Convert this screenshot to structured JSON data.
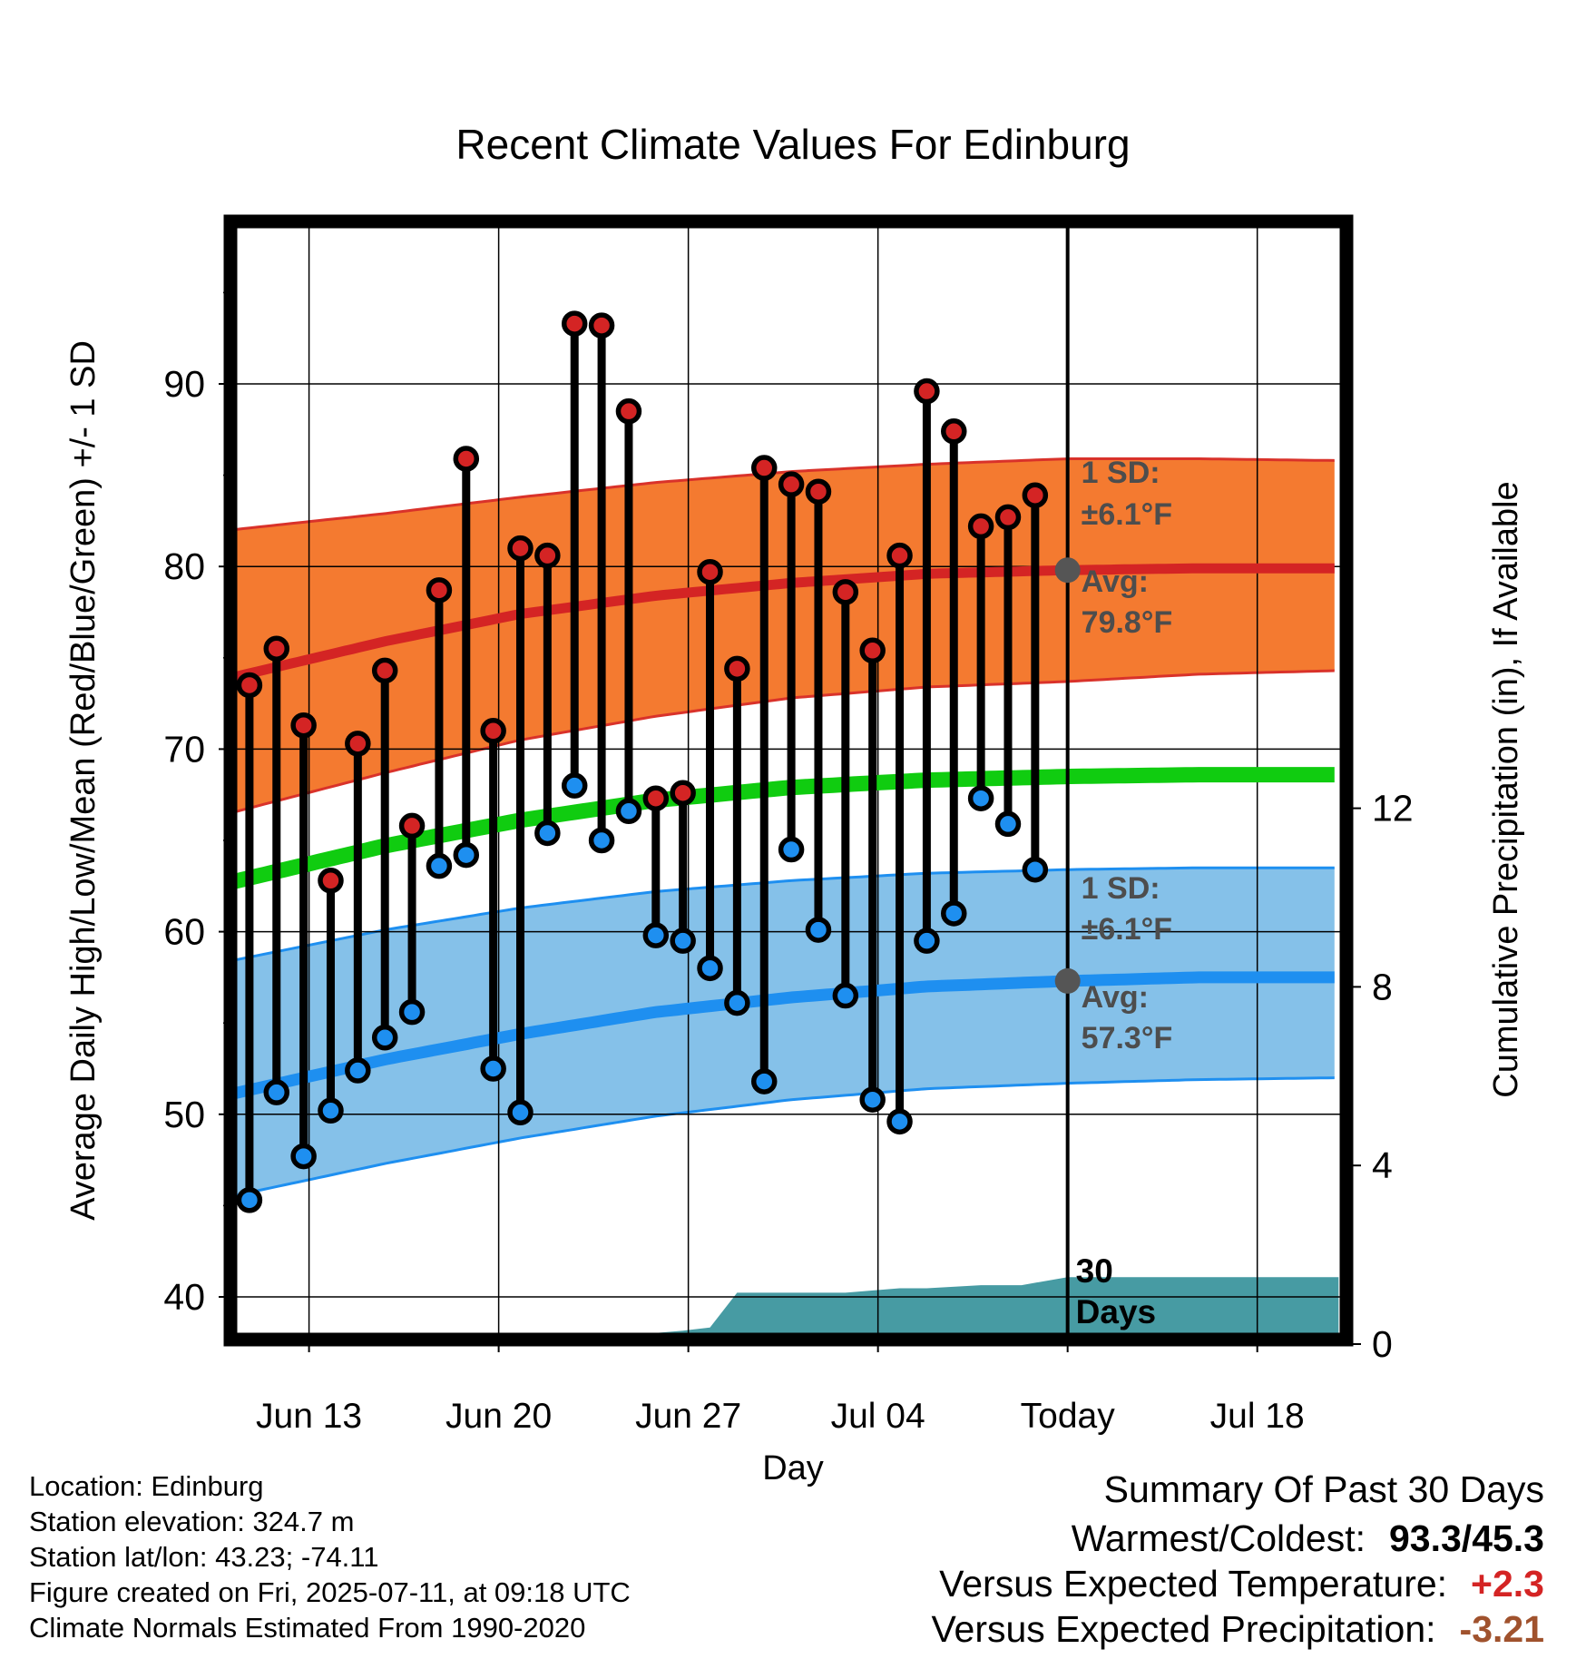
{
  "chart_data": {
    "type": "line",
    "title": "Recent Climate Values For Edinburg",
    "xlabel": "Day",
    "ylabel_left": "Average Daily High/Low/Mean (Red/Blue/Green) +/- 1 SD",
    "ylabel_right": "Cumulative Precipitation (in), If Available",
    "ylim_left": [
      37.8,
      98.5
    ],
    "ylim_right": [
      0,
      17.9
    ],
    "yticks_left": [
      40,
      50,
      60,
      70,
      80,
      90
    ],
    "yticks_right": [
      0,
      4,
      8,
      12
    ],
    "x_ticks": [
      {
        "day": 2.2,
        "label": "Jun 13"
      },
      {
        "day": 9.2,
        "label": "Jun 20"
      },
      {
        "day": 16.2,
        "label": "Jun 27"
      },
      {
        "day": 23.2,
        "label": "Jul 04"
      },
      {
        "day": 30.2,
        "label": "Today"
      },
      {
        "day": 37.2,
        "label": "Jul 18"
      }
    ],
    "xlim": [
      -0.7,
      40.2
    ],
    "today_day": 30.2,
    "highs": [
      73.5,
      75.5,
      71.3,
      62.8,
      70.3,
      74.3,
      65.8,
      78.7,
      85.9,
      71.0,
      81.0,
      80.6,
      93.3,
      93.2,
      88.5,
      67.3,
      67.6,
      79.7,
      74.4,
      85.4,
      84.5,
      84.1,
      78.6,
      75.4,
      80.6,
      89.6,
      87.4,
      82.2,
      82.7,
      83.9
    ],
    "lows": [
      45.3,
      51.2,
      47.7,
      50.2,
      52.4,
      54.2,
      55.6,
      63.6,
      64.2,
      52.5,
      50.1,
      65.4,
      68.0,
      65.0,
      66.6,
      59.8,
      59.5,
      58.0,
      56.1,
      51.8,
      64.5,
      60.1,
      56.5,
      50.8,
      49.6,
      59.5,
      61.0,
      67.3,
      65.9,
      63.4
    ],
    "normals": {
      "days": [
        -0.7,
        5,
        10,
        15,
        20,
        25,
        30.2,
        35,
        40.2
      ],
      "high_mean": [
        73.9,
        75.9,
        77.4,
        78.4,
        79.1,
        79.6,
        79.8,
        79.9,
        79.9
      ],
      "high_upper": [
        82.0,
        82.9,
        83.8,
        84.6,
        85.2,
        85.6,
        85.9,
        85.9,
        85.8
      ],
      "high_lower": [
        66.5,
        68.7,
        70.5,
        71.8,
        72.8,
        73.4,
        73.7,
        74.1,
        74.3
      ],
      "mean": [
        62.7,
        64.7,
        66.1,
        67.2,
        67.9,
        68.3,
        68.5,
        68.6,
        68.6
      ],
      "low_mean": [
        51.1,
        53.0,
        54.4,
        55.6,
        56.4,
        57.0,
        57.3,
        57.5,
        57.5
      ],
      "low_upper": [
        58.4,
        60.1,
        61.3,
        62.2,
        62.8,
        63.2,
        63.4,
        63.5,
        63.5
      ],
      "low_lower": [
        45.5,
        47.3,
        48.7,
        49.9,
        50.8,
        51.4,
        51.7,
        51.9,
        52.0
      ]
    },
    "precip_cumulative": {
      "days": [
        6.5,
        7.5,
        9.0,
        10.0,
        11.0,
        12.5,
        14.0,
        15.0,
        16.0,
        17.0,
        18.0,
        20.0,
        22.0,
        24.0,
        25.0,
        27.0,
        28.0,
        28.5,
        30.2,
        40.2
      ],
      "values": [
        0.0,
        0.07,
        0.1,
        0.1,
        0.1,
        0.25,
        0.25,
        0.25,
        0.3,
        0.37,
        1.15,
        1.15,
        1.15,
        1.25,
        1.25,
        1.32,
        1.32,
        1.32,
        1.5,
        1.5
      ]
    },
    "annotations": {
      "high_sd": "1 SD:",
      "high_sd_val": "±6.1°F",
      "high_avg": "Avg:",
      "high_avg_val": "79.8°F",
      "low_sd": "1 SD:",
      "low_sd_val": "±6.1°F",
      "low_avg": "Avg:",
      "low_avg_val": "57.3°F",
      "days_a": "30",
      "days_b": "Days"
    },
    "colors": {
      "high_band": "#f47a30",
      "high_edge": "#d9322a",
      "high_line": "#d42424",
      "low_band": "#85c1e9",
      "low_edge": "#1e8ff0",
      "low_line": "#1e8ff0",
      "mean_line": "#10cc10",
      "precip": "#479ba3",
      "high_dot": "#d42424",
      "low_dot": "#1e8ff0",
      "annotation": "#4d4d4d"
    }
  },
  "info": {
    "location": "Location: Edinburg",
    "elevation": "Station elevation: 324.7 m",
    "latlon": "Station lat/lon: 43.23; -74.11",
    "created": "Figure created on Fri, 2025-07-11, at 09:18 UTC",
    "normals": "Climate Normals Estimated From 1990-2020"
  },
  "summary": {
    "heading": "Summary Of Past 30 Days",
    "warmcold_label": "Warmest/Coldest:",
    "warmcold_value": "93.3/45.3",
    "temp_label": "Versus Expected Temperature:",
    "temp_value": "+2.3",
    "temp_color": "#d42424",
    "precip_label": "Versus Expected Precipitation:",
    "precip_value": "-3.21",
    "precip_color": "#a0522d"
  }
}
